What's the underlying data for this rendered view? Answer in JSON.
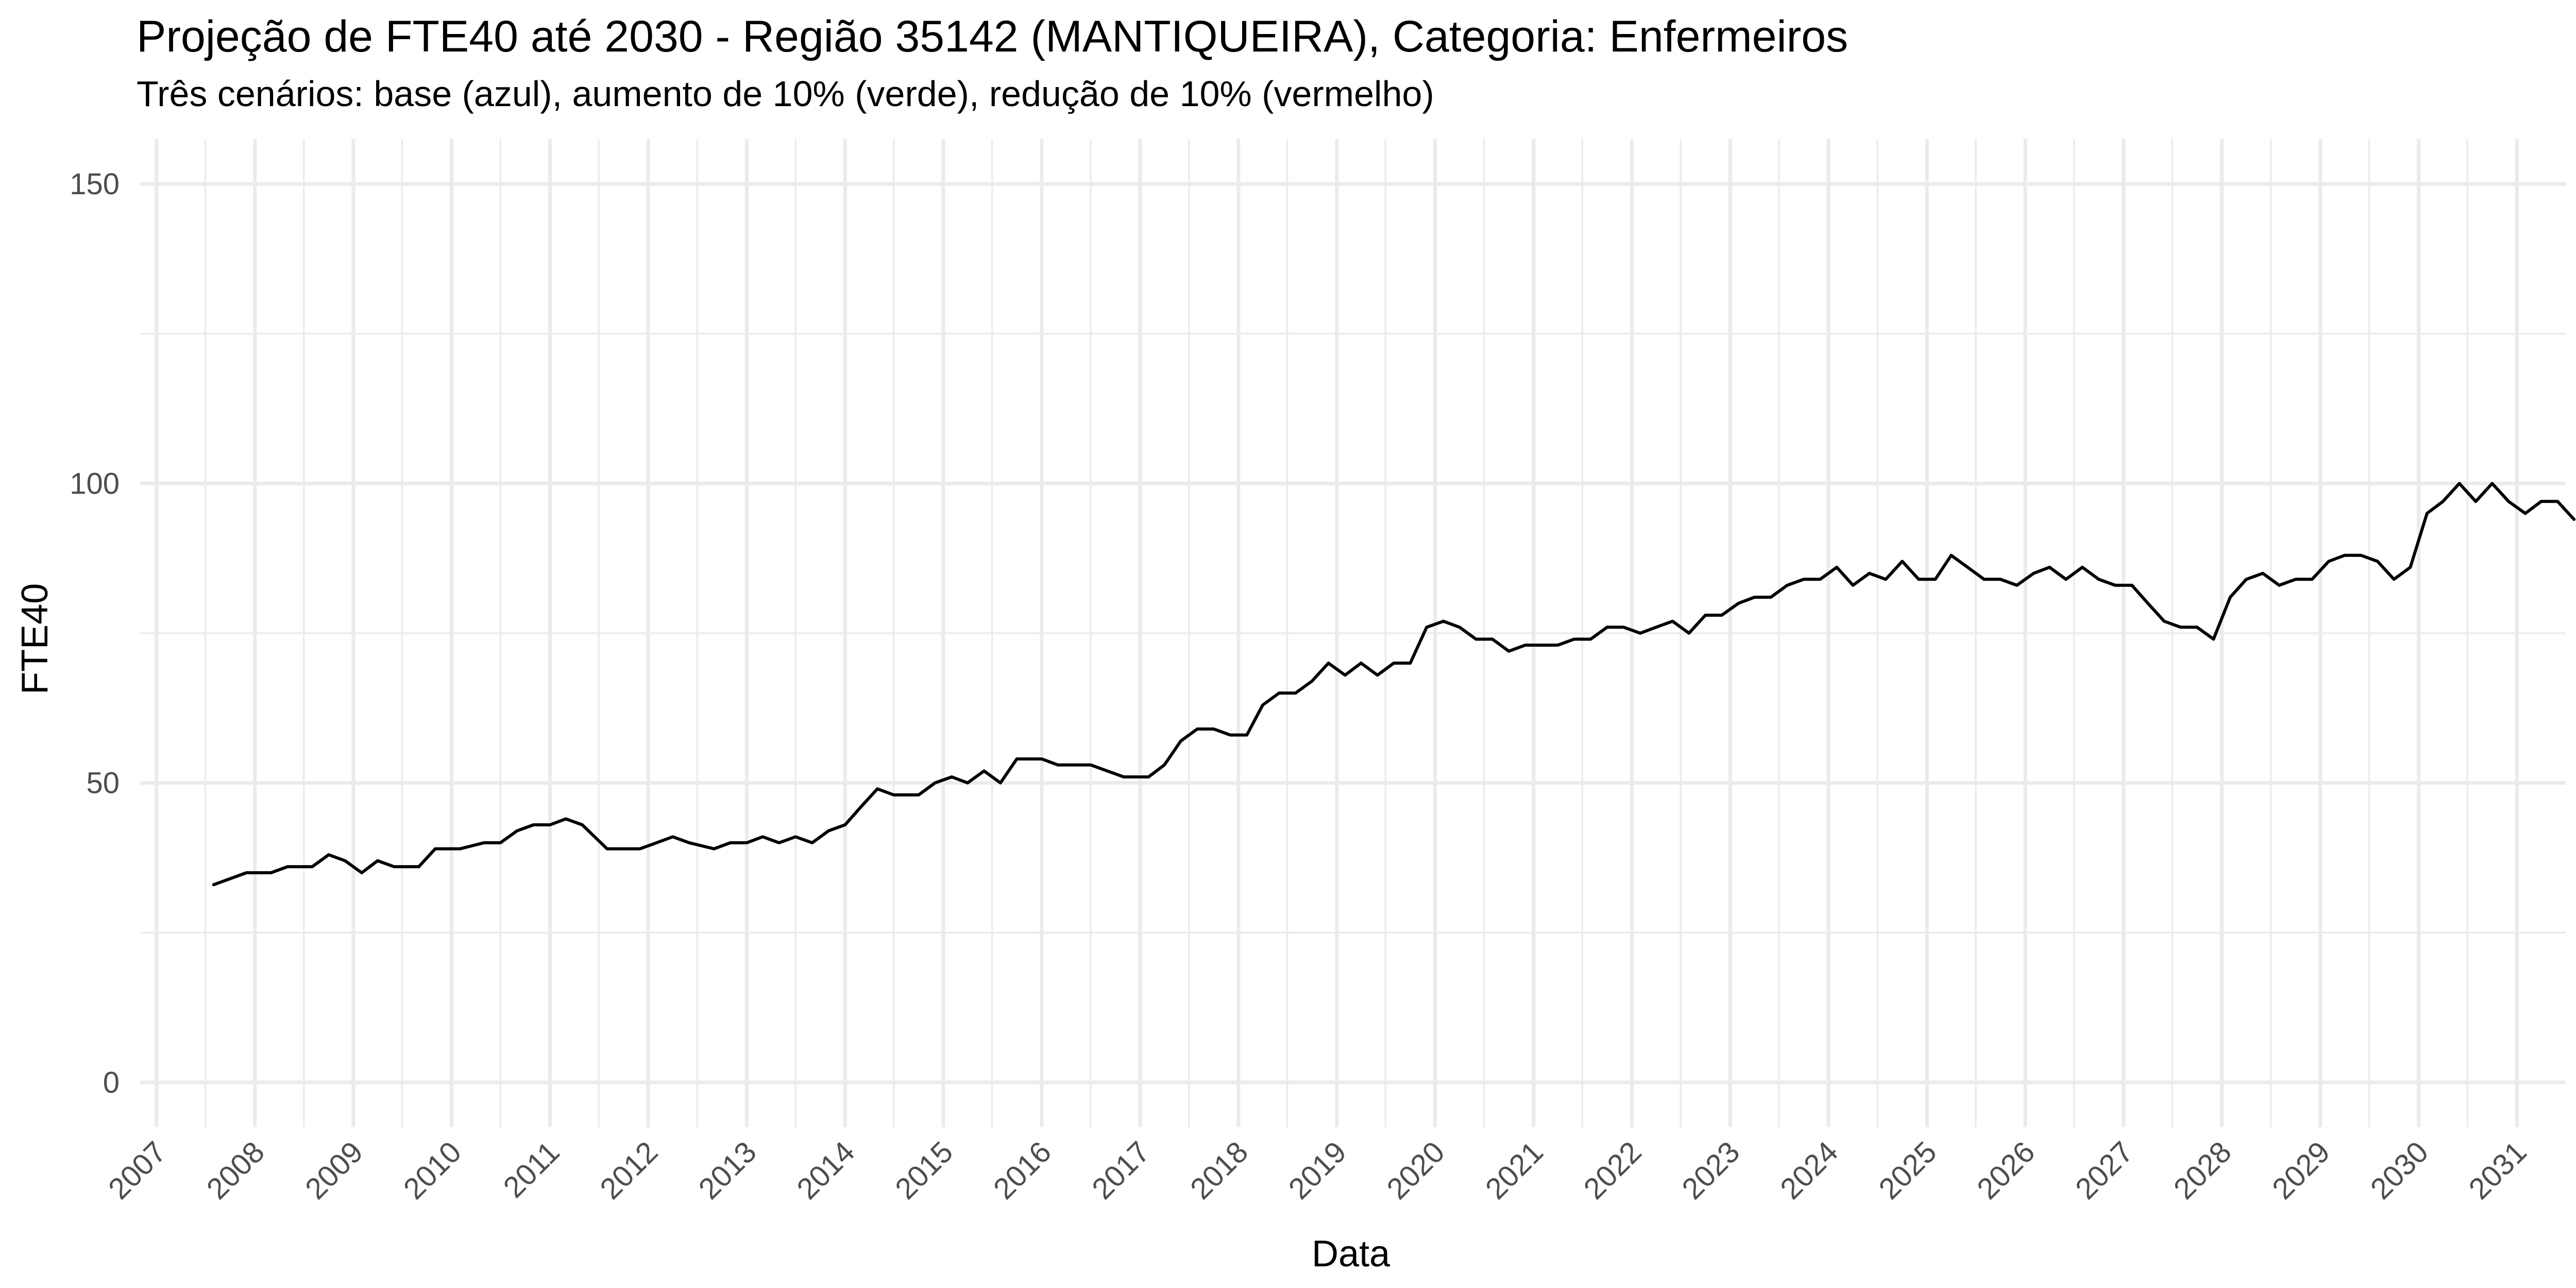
{
  "chart_data": {
    "type": "line",
    "title": "Projeção de FTE40 até 2030 - Região 35142 (MANTIQUEIRA), Categoria: Enfermeiros",
    "subtitle": "Três cenários: base (azul), aumento de 10% (verde), redução de 10% (vermelho)",
    "xlabel": "Data",
    "ylabel": "FTE40",
    "xlim": [
      "2006-11-01",
      "2031-07-01"
    ],
    "ylim": [
      -7.5,
      157.5
    ],
    "x_ticks": [
      "2007",
      "2008",
      "2009",
      "2010",
      "2011",
      "2012",
      "2013",
      "2014",
      "2015",
      "2016",
      "2017",
      "2018",
      "2019",
      "2020",
      "2021",
      "2022",
      "2023",
      "2024",
      "2025",
      "2026",
      "2027",
      "2028",
      "2029",
      "2030",
      "2031"
    ],
    "y_ticks": [
      0,
      50,
      100,
      150
    ],
    "y_minor_ticks": [
      25,
      75,
      125
    ],
    "grid": true,
    "legend": "none",
    "series": [
      {
        "color": "#000000",
        "points": [
          [
            "2007-08-01",
            33
          ],
          [
            "2007-10-01",
            34
          ],
          [
            "2007-12-01",
            35
          ],
          [
            "2008-03-01",
            35
          ],
          [
            "2008-05-01",
            36
          ],
          [
            "2008-08-01",
            36
          ],
          [
            "2008-10-01",
            38
          ],
          [
            "2008-12-01",
            37
          ],
          [
            "2009-02-01",
            35
          ],
          [
            "2009-04-01",
            37
          ],
          [
            "2009-06-01",
            36
          ],
          [
            "2009-09-01",
            36
          ],
          [
            "2009-11-01",
            39
          ],
          [
            "2010-02-01",
            39
          ],
          [
            "2010-05-01",
            40
          ],
          [
            "2010-07-01",
            40
          ],
          [
            "2010-09-01",
            42
          ],
          [
            "2010-11-01",
            43
          ],
          [
            "2011-01-01",
            43
          ],
          [
            "2011-03-01",
            44
          ],
          [
            "2011-05-01",
            43
          ],
          [
            "2011-08-01",
            39
          ],
          [
            "2011-10-01",
            39
          ],
          [
            "2011-12-01",
            39
          ],
          [
            "2012-02-01",
            40
          ],
          [
            "2012-04-01",
            41
          ],
          [
            "2012-06-01",
            40
          ],
          [
            "2012-09-01",
            39
          ],
          [
            "2012-11-01",
            40
          ],
          [
            "2013-01-01",
            40
          ],
          [
            "2013-03-01",
            41
          ],
          [
            "2013-05-01",
            40
          ],
          [
            "2013-07-01",
            41
          ],
          [
            "2013-09-01",
            40
          ],
          [
            "2013-11-01",
            42
          ],
          [
            "2014-01-01",
            43
          ],
          [
            "2014-03-01",
            46
          ],
          [
            "2014-05-01",
            49
          ],
          [
            "2014-07-01",
            48
          ],
          [
            "2014-10-01",
            48
          ],
          [
            "2014-12-01",
            50
          ],
          [
            "2015-02-01",
            51
          ],
          [
            "2015-04-01",
            50
          ],
          [
            "2015-06-01",
            52
          ],
          [
            "2015-08-01",
            50
          ],
          [
            "2015-10-01",
            54
          ],
          [
            "2016-01-01",
            54
          ],
          [
            "2016-03-01",
            53
          ],
          [
            "2016-05-01",
            53
          ],
          [
            "2016-07-01",
            53
          ],
          [
            "2016-09-01",
            52
          ],
          [
            "2016-11-01",
            51
          ],
          [
            "2017-02-01",
            51
          ],
          [
            "2017-04-01",
            53
          ],
          [
            "2017-06-01",
            57
          ],
          [
            "2017-08-01",
            59
          ],
          [
            "2017-10-01",
            59
          ],
          [
            "2017-12-01",
            58
          ],
          [
            "2018-02-01",
            58
          ],
          [
            "2018-04-01",
            63
          ],
          [
            "2018-06-01",
            65
          ],
          [
            "2018-08-01",
            65
          ],
          [
            "2018-10-01",
            67
          ],
          [
            "2018-12-01",
            70
          ],
          [
            "2019-02-01",
            68
          ],
          [
            "2019-04-01",
            70
          ],
          [
            "2019-06-01",
            68
          ],
          [
            "2019-08-01",
            70
          ],
          [
            "2019-10-01",
            70
          ],
          [
            "2019-12-01",
            76
          ],
          [
            "2020-02-01",
            77
          ],
          [
            "2020-04-01",
            76
          ],
          [
            "2020-06-01",
            74
          ],
          [
            "2020-08-01",
            74
          ],
          [
            "2020-10-01",
            72
          ],
          [
            "2020-12-01",
            73
          ],
          [
            "2021-02-01",
            73
          ],
          [
            "2021-04-01",
            73
          ],
          [
            "2021-06-01",
            74
          ],
          [
            "2021-08-01",
            74
          ],
          [
            "2021-10-01",
            76
          ],
          [
            "2021-12-01",
            76
          ],
          [
            "2022-02-01",
            75
          ],
          [
            "2022-04-01",
            76
          ],
          [
            "2022-06-01",
            77
          ],
          [
            "2022-08-01",
            75
          ],
          [
            "2022-10-01",
            78
          ],
          [
            "2022-12-01",
            78
          ],
          [
            "2023-02-01",
            80
          ],
          [
            "2023-04-01",
            81
          ],
          [
            "2023-06-01",
            81
          ],
          [
            "2023-08-01",
            83
          ],
          [
            "2023-10-01",
            84
          ],
          [
            "2023-12-01",
            84
          ],
          [
            "2024-02-01",
            86
          ],
          [
            "2024-04-01",
            83
          ],
          [
            "2024-06-01",
            85
          ],
          [
            "2024-08-01",
            84
          ],
          [
            "2024-10-01",
            87
          ],
          [
            "2024-12-01",
            84
          ],
          [
            "2025-02-01",
            84
          ],
          [
            "2025-04-01",
            88
          ],
          [
            "2025-06-01",
            86
          ],
          [
            "2025-08-01",
            84
          ],
          [
            "2025-10-01",
            84
          ],
          [
            "2025-12-01",
            83
          ],
          [
            "2026-02-01",
            85
          ],
          [
            "2026-04-01",
            86
          ],
          [
            "2026-06-01",
            84
          ],
          [
            "2026-08-01",
            86
          ],
          [
            "2026-10-01",
            84
          ],
          [
            "2026-12-01",
            83
          ],
          [
            "2027-02-01",
            83
          ],
          [
            "2027-04-01",
            80
          ],
          [
            "2027-06-01",
            77
          ],
          [
            "2027-08-01",
            76
          ],
          [
            "2027-10-01",
            76
          ],
          [
            "2027-12-01",
            74
          ],
          [
            "2028-02-01",
            81
          ],
          [
            "2028-04-01",
            84
          ],
          [
            "2028-06-01",
            85
          ],
          [
            "2028-08-01",
            83
          ],
          [
            "2028-10-01",
            84
          ],
          [
            "2028-12-01",
            84
          ],
          [
            "2029-02-01",
            87
          ],
          [
            "2029-04-01",
            88
          ],
          [
            "2029-06-01",
            88
          ],
          [
            "2029-08-01",
            87
          ],
          [
            "2029-10-01",
            84
          ],
          [
            "2029-12-01",
            86
          ],
          [
            "2030-02-01",
            95
          ],
          [
            "2030-04-01",
            97
          ],
          [
            "2030-06-01",
            100
          ],
          [
            "2030-08-01",
            97
          ],
          [
            "2030-10-01",
            100
          ],
          [
            "2030-12-01",
            97
          ],
          [
            "2031-02-01",
            95
          ],
          [
            "2031-04-01",
            97
          ],
          [
            "2031-06-01",
            97
          ],
          [
            "2031-08-01",
            94
          ]
        ]
      }
    ]
  }
}
